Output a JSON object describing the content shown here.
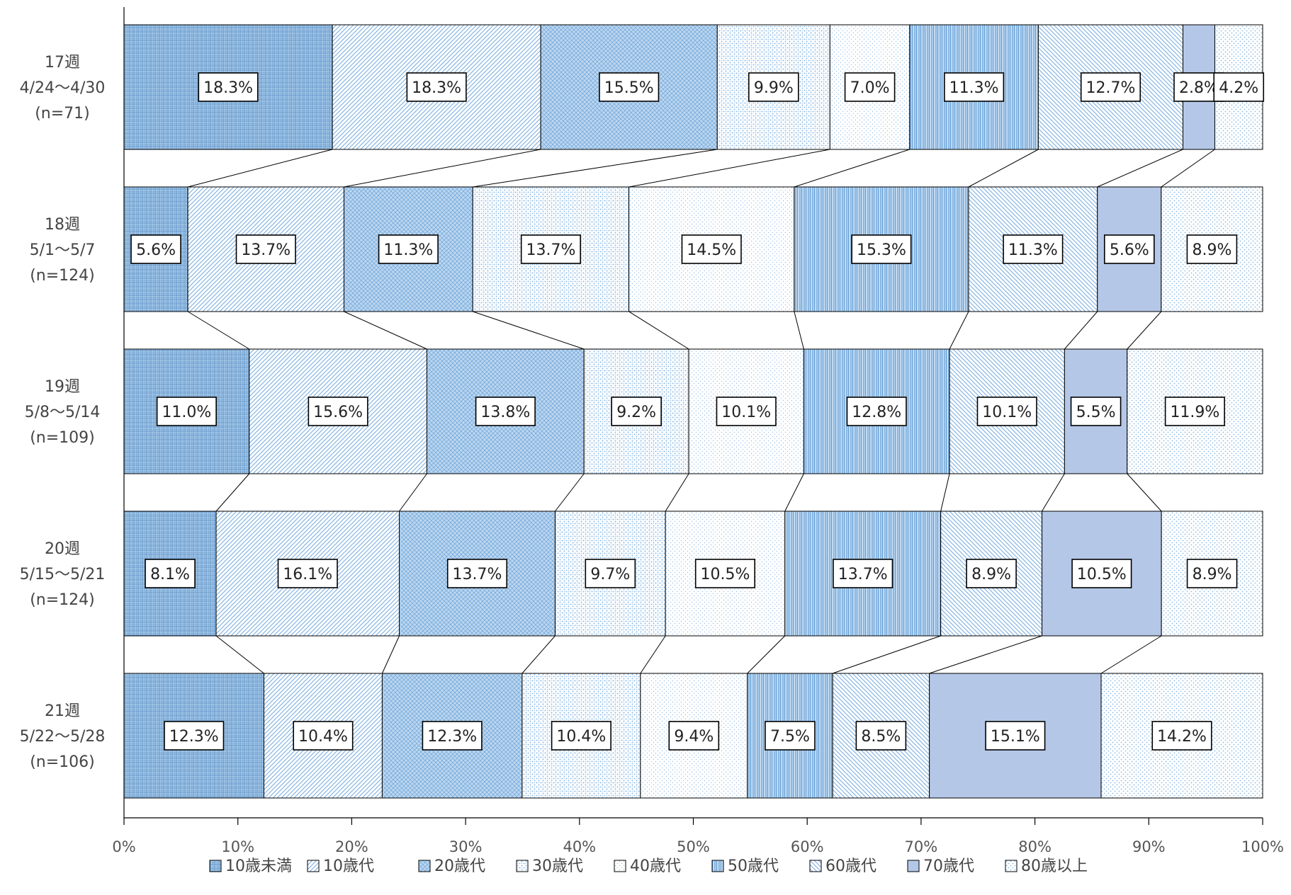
{
  "chart_data": {
    "type": "bar",
    "orientation": "horizontal",
    "stacked": "percent",
    "title": "",
    "xlabel": "",
    "ylabel": "",
    "xlim": [
      0,
      100
    ],
    "x_ticks": [
      "0%",
      "10%",
      "20%",
      "30%",
      "40%",
      "50%",
      "60%",
      "70%",
      "80%",
      "90%",
      "100%"
    ],
    "grid": false,
    "legend_position": "bottom",
    "series_connectors": true,
    "categories": [
      {
        "week": "17週",
        "range": "4/24〜4/30",
        "n": "(n=71)"
      },
      {
        "week": "18週",
        "range": "5/1〜5/7",
        "n": "(n=124)"
      },
      {
        "week": "19週",
        "range": "5/8〜5/14",
        "n": "(n=109)"
      },
      {
        "week": "20週",
        "range": "5/15〜5/21",
        "n": "(n=124)"
      },
      {
        "week": "21週",
        "range": "5/22〜5/28",
        "n": "(n=106)"
      }
    ],
    "series": [
      {
        "name": "10歳未満",
        "values": [
          18.3,
          5.6,
          11.0,
          8.1,
          12.3
        ],
        "labels": [
          "18.3%",
          "5.6%",
          "11.0%",
          "8.1%",
          "12.3%"
        ],
        "color": "#5b9bd5"
      },
      {
        "name": "10歳代",
        "values": [
          18.3,
          13.7,
          15.6,
          16.1,
          10.4
        ],
        "labels": [
          "18.3%",
          "13.7%",
          "15.6%",
          "16.1%",
          "10.4%"
        ],
        "color": "#7aaee0"
      },
      {
        "name": "20歳代",
        "values": [
          15.5,
          11.3,
          13.8,
          13.7,
          12.3
        ],
        "labels": [
          "15.5%",
          "11.3%",
          "13.8%",
          "13.7%",
          "12.3%"
        ],
        "color": "#6fa6dc"
      },
      {
        "name": "30歳代",
        "values": [
          9.9,
          13.7,
          9.2,
          9.7,
          10.4
        ],
        "labels": [
          "9.9%",
          "13.7%",
          "9.2%",
          "9.7%",
          "10.4%"
        ],
        "color": "#8dbbe5"
      },
      {
        "name": "40歳代",
        "values": [
          7.0,
          14.5,
          10.1,
          10.5,
          9.4
        ],
        "labels": [
          "7.0%",
          "14.5%",
          "10.1%",
          "10.5%",
          "9.4%"
        ],
        "color": "#9cc3e8"
      },
      {
        "name": "50歳代",
        "values": [
          11.3,
          15.3,
          12.8,
          13.7,
          7.5
        ],
        "labels": [
          "11.3%",
          "15.3%",
          "12.8%",
          "13.7%",
          "7.5%"
        ],
        "color": "#5b9bd5"
      },
      {
        "name": "60歳代",
        "values": [
          12.7,
          11.3,
          10.1,
          8.9,
          8.5
        ],
        "labels": [
          "12.7%",
          "11.3%",
          "10.1%",
          "8.9%",
          "8.5%"
        ],
        "color": "#7aaee0"
      },
      {
        "name": "70歳代",
        "values": [
          2.8,
          5.6,
          5.5,
          10.5,
          15.1
        ],
        "labels": [
          "2.8%",
          "5.6%",
          "5.5%",
          "10.5%",
          "15.1%"
        ],
        "color": "#b4c7e7"
      },
      {
        "name": "80歳以上",
        "values": [
          4.2,
          8.9,
          11.9,
          8.9,
          14.2
        ],
        "labels": [
          "4.2%",
          "8.9%",
          "11.9%",
          "8.9%",
          "14.2%"
        ],
        "color": "#8dbbe5"
      }
    ]
  }
}
